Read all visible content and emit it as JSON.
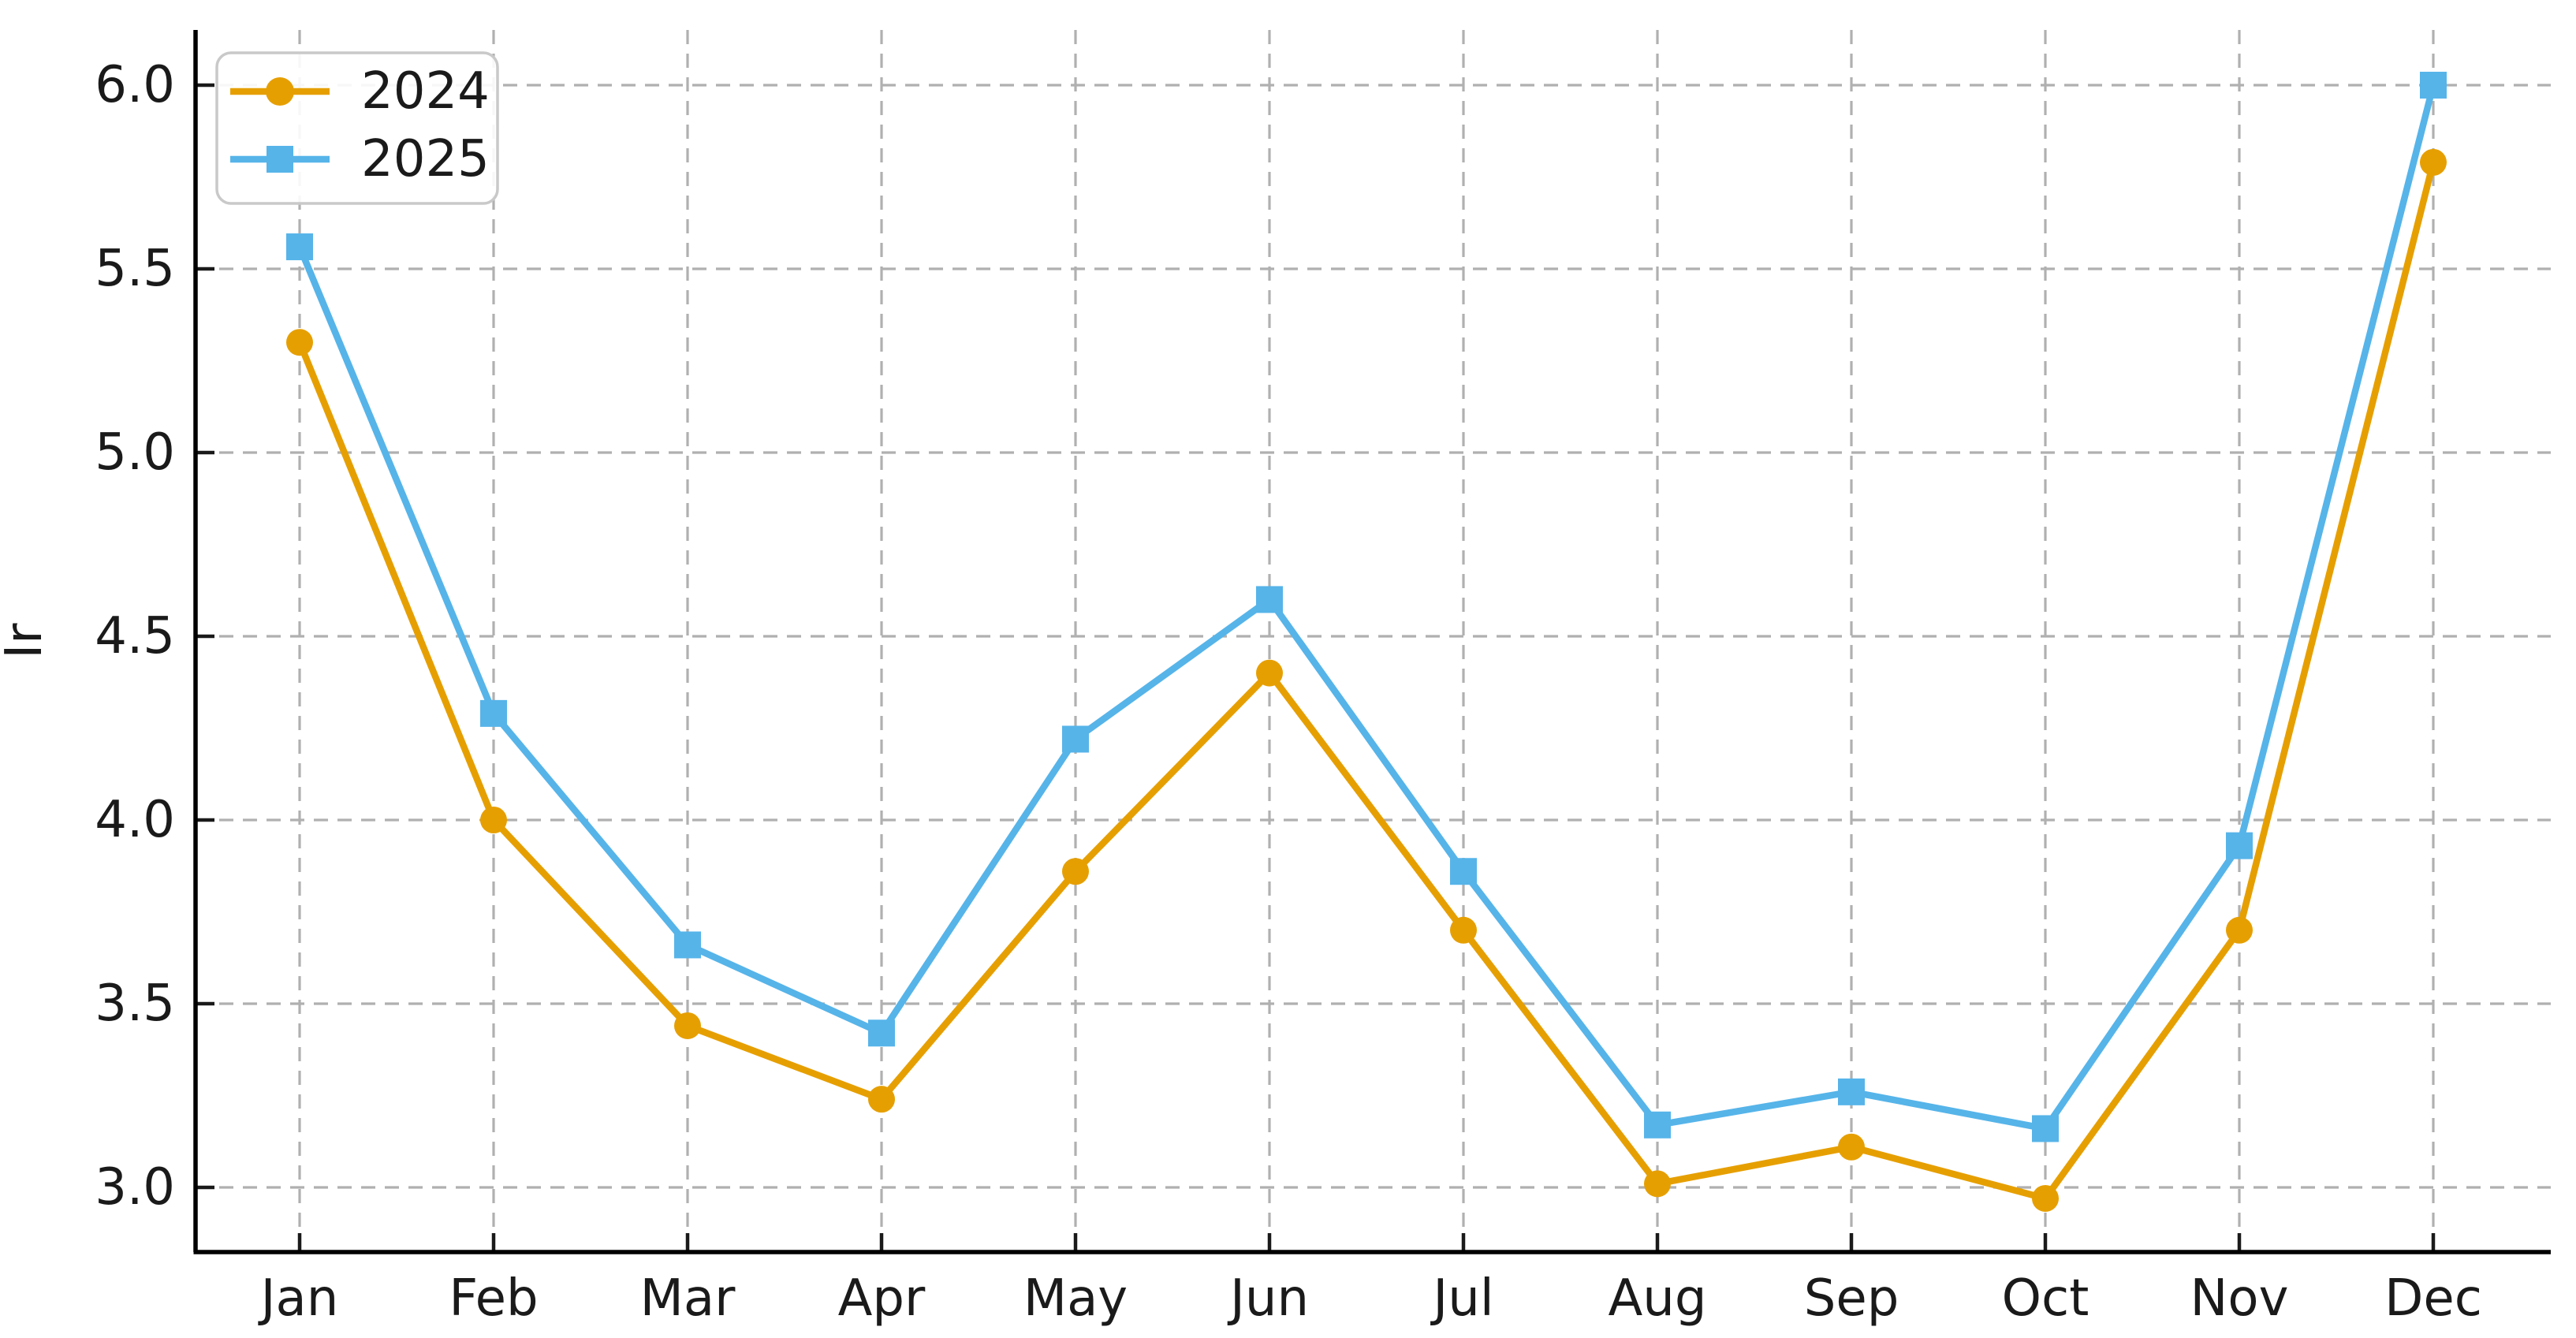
{
  "chart_data": {
    "type": "line",
    "title": "",
    "xlabel": "",
    "ylabel": "Ir",
    "categories": [
      "Jan",
      "Feb",
      "Mar",
      "Apr",
      "May",
      "Jun",
      "Jul",
      "Aug",
      "Sep",
      "Oct",
      "Nov",
      "Dec"
    ],
    "series": [
      {
        "name": "2024",
        "color": "#E69F00",
        "marker": "circle",
        "values": [
          5.3,
          4.0,
          3.44,
          3.24,
          3.86,
          4.4,
          3.7,
          3.01,
          3.11,
          2.97,
          3.7,
          5.79
        ]
      },
      {
        "name": "2025",
        "color": "#56B4E9",
        "marker": "square",
        "values": [
          5.56,
          4.29,
          3.66,
          3.42,
          4.22,
          4.6,
          3.86,
          3.17,
          3.26,
          3.16,
          3.93,
          6.0
        ]
      }
    ],
    "yticks": {
      "values": [
        6.0,
        5.5,
        5.0,
        4.5,
        4.0,
        3.5,
        3.0
      ],
      "labels": [
        "6.0",
        "5.5",
        "5.0",
        "4.5",
        "4.0",
        "3.5",
        "3.0"
      ]
    },
    "ylim": [
      2.83,
      6.15
    ],
    "grid": "dashed",
    "legend": {
      "position": "upper left"
    },
    "theme": {
      "grid_color": "#b0b0b0",
      "spine_color": "#000000",
      "tick_color": "#1a1a1a",
      "text_color": "#1a1a1a",
      "legend_border": "#c9c9c9",
      "legend_background": "#ffffff",
      "background": "#ffffff"
    }
  }
}
